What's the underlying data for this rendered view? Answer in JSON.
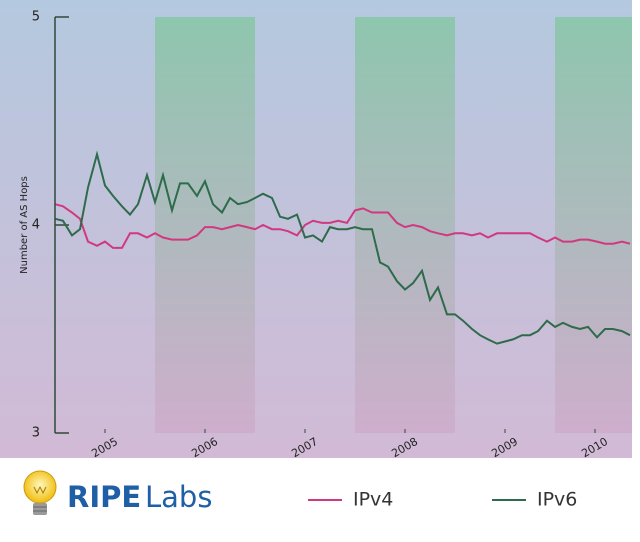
{
  "logo": {
    "name": "RIPE",
    "suffix": "Labs"
  },
  "chart_data": {
    "type": "line",
    "y_label": "Number of AS Hops",
    "x": [
      2005,
      2005.08,
      2005.17,
      2005.25,
      2005.33,
      2005.42,
      2005.5,
      2005.58,
      2005.67,
      2005.75,
      2005.83,
      2005.92,
      2006,
      2006.08,
      2006.17,
      2006.25,
      2006.33,
      2006.42,
      2006.5,
      2006.58,
      2006.67,
      2006.75,
      2006.83,
      2006.92,
      2007,
      2007.08,
      2007.17,
      2007.25,
      2007.33,
      2007.42,
      2007.5,
      2007.58,
      2007.67,
      2007.75,
      2007.83,
      2007.92,
      2008,
      2008.08,
      2008.17,
      2008.25,
      2008.33,
      2008.42,
      2008.5,
      2008.58,
      2008.67,
      2008.75,
      2008.83,
      2008.92,
      2009,
      2009.08,
      2009.17,
      2009.25,
      2009.33,
      2009.42,
      2009.5,
      2009.58,
      2009.67,
      2009.75,
      2009.83,
      2009.92,
      2010,
      2010.08,
      2010.17,
      2010.25,
      2010.33,
      2010.42,
      2010.5,
      2010.58,
      2010.67,
      2010.75
    ],
    "series": [
      {
        "name": "IPv4",
        "color": "#d0387f",
        "values": [
          4.1,
          4.09,
          4.06,
          4.03,
          3.92,
          3.9,
          3.92,
          3.89,
          3.89,
          3.96,
          3.96,
          3.94,
          3.96,
          3.94,
          3.93,
          3.93,
          3.93,
          3.95,
          3.99,
          3.99,
          3.98,
          3.99,
          4.0,
          3.99,
          3.98,
          4.0,
          3.98,
          3.98,
          3.97,
          3.95,
          4.0,
          4.02,
          4.01,
          4.01,
          4.02,
          4.01,
          4.07,
          4.08,
          4.06,
          4.06,
          4.06,
          4.01,
          3.99,
          4.0,
          3.99,
          3.97,
          3.96,
          3.95,
          3.96,
          3.96,
          3.95,
          3.96,
          3.94,
          3.96,
          3.96,
          3.96,
          3.96,
          3.96,
          3.94,
          3.92,
          3.94,
          3.92,
          3.92,
          3.93,
          3.93,
          3.92,
          3.91,
          3.91,
          3.92,
          3.91
        ]
      },
      {
        "name": "IPv6",
        "color": "#2e6b4a",
        "values": [
          4.03,
          4.02,
          3.95,
          3.98,
          4.18,
          4.34,
          4.19,
          4.14,
          4.09,
          4.05,
          4.1,
          4.24,
          4.11,
          4.24,
          4.07,
          4.2,
          4.2,
          4.14,
          4.21,
          4.1,
          4.06,
          4.13,
          4.1,
          4.11,
          4.13,
          4.15,
          4.13,
          4.04,
          4.03,
          4.05,
          3.94,
          3.95,
          3.92,
          3.99,
          3.98,
          3.98,
          3.99,
          3.98,
          3.98,
          3.82,
          3.8,
          3.73,
          3.69,
          3.72,
          3.78,
          3.64,
          3.7,
          3.57,
          3.57,
          3.54,
          3.5,
          3.47,
          3.45,
          3.43,
          3.44,
          3.45,
          3.47,
          3.47,
          3.49,
          3.54,
          3.51,
          3.53,
          3.51,
          3.5,
          3.51,
          3.46,
          3.5,
          3.5,
          3.49,
          3.47
        ]
      }
    ],
    "xlim": [
      2005,
      2010.77
    ],
    "xticks": [
      {
        "value": 2005.5,
        "label": "2005"
      },
      {
        "value": 2006.5,
        "label": "2006"
      },
      {
        "value": 2007.5,
        "label": "2007"
      },
      {
        "value": 2008.5,
        "label": "2008"
      },
      {
        "value": 2009.5,
        "label": "2009"
      },
      {
        "value": 2010.4,
        "label": "2010"
      }
    ],
    "ylim": [
      3,
      5
    ],
    "yticks": [
      3,
      4,
      5
    ],
    "bands": [
      [
        2006,
        2007
      ],
      [
        2008,
        2009
      ],
      [
        2010,
        2010.77
      ]
    ],
    "legend": "bottom"
  }
}
